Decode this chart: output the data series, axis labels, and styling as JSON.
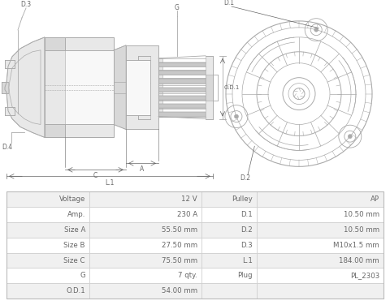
{
  "bg_color": "#ffffff",
  "diagram_line_color": "#aaaaaa",
  "text_color": "#666666",
  "table_row_bg1": "#f0f0f0",
  "table_row_bg2": "#ffffff",
  "table_border_color": "#cccccc",
  "rows": [
    [
      "Voltage",
      "12 V",
      "Pulley",
      "AP"
    ],
    [
      "Amp.",
      "230 A",
      "D.1",
      "10.50 mm"
    ],
    [
      "Size A",
      "55.50 mm",
      "D.2",
      "10.50 mm"
    ],
    [
      "Size B",
      "27.50 mm",
      "D.3",
      "M10x1.5 mm"
    ],
    [
      "Size C",
      "75.50 mm",
      "L.1",
      "184.00 mm"
    ],
    [
      "G",
      "7 qty.",
      "Plug",
      "PL_2303"
    ],
    [
      "O.D.1",
      "54.00 mm",
      "",
      ""
    ]
  ]
}
